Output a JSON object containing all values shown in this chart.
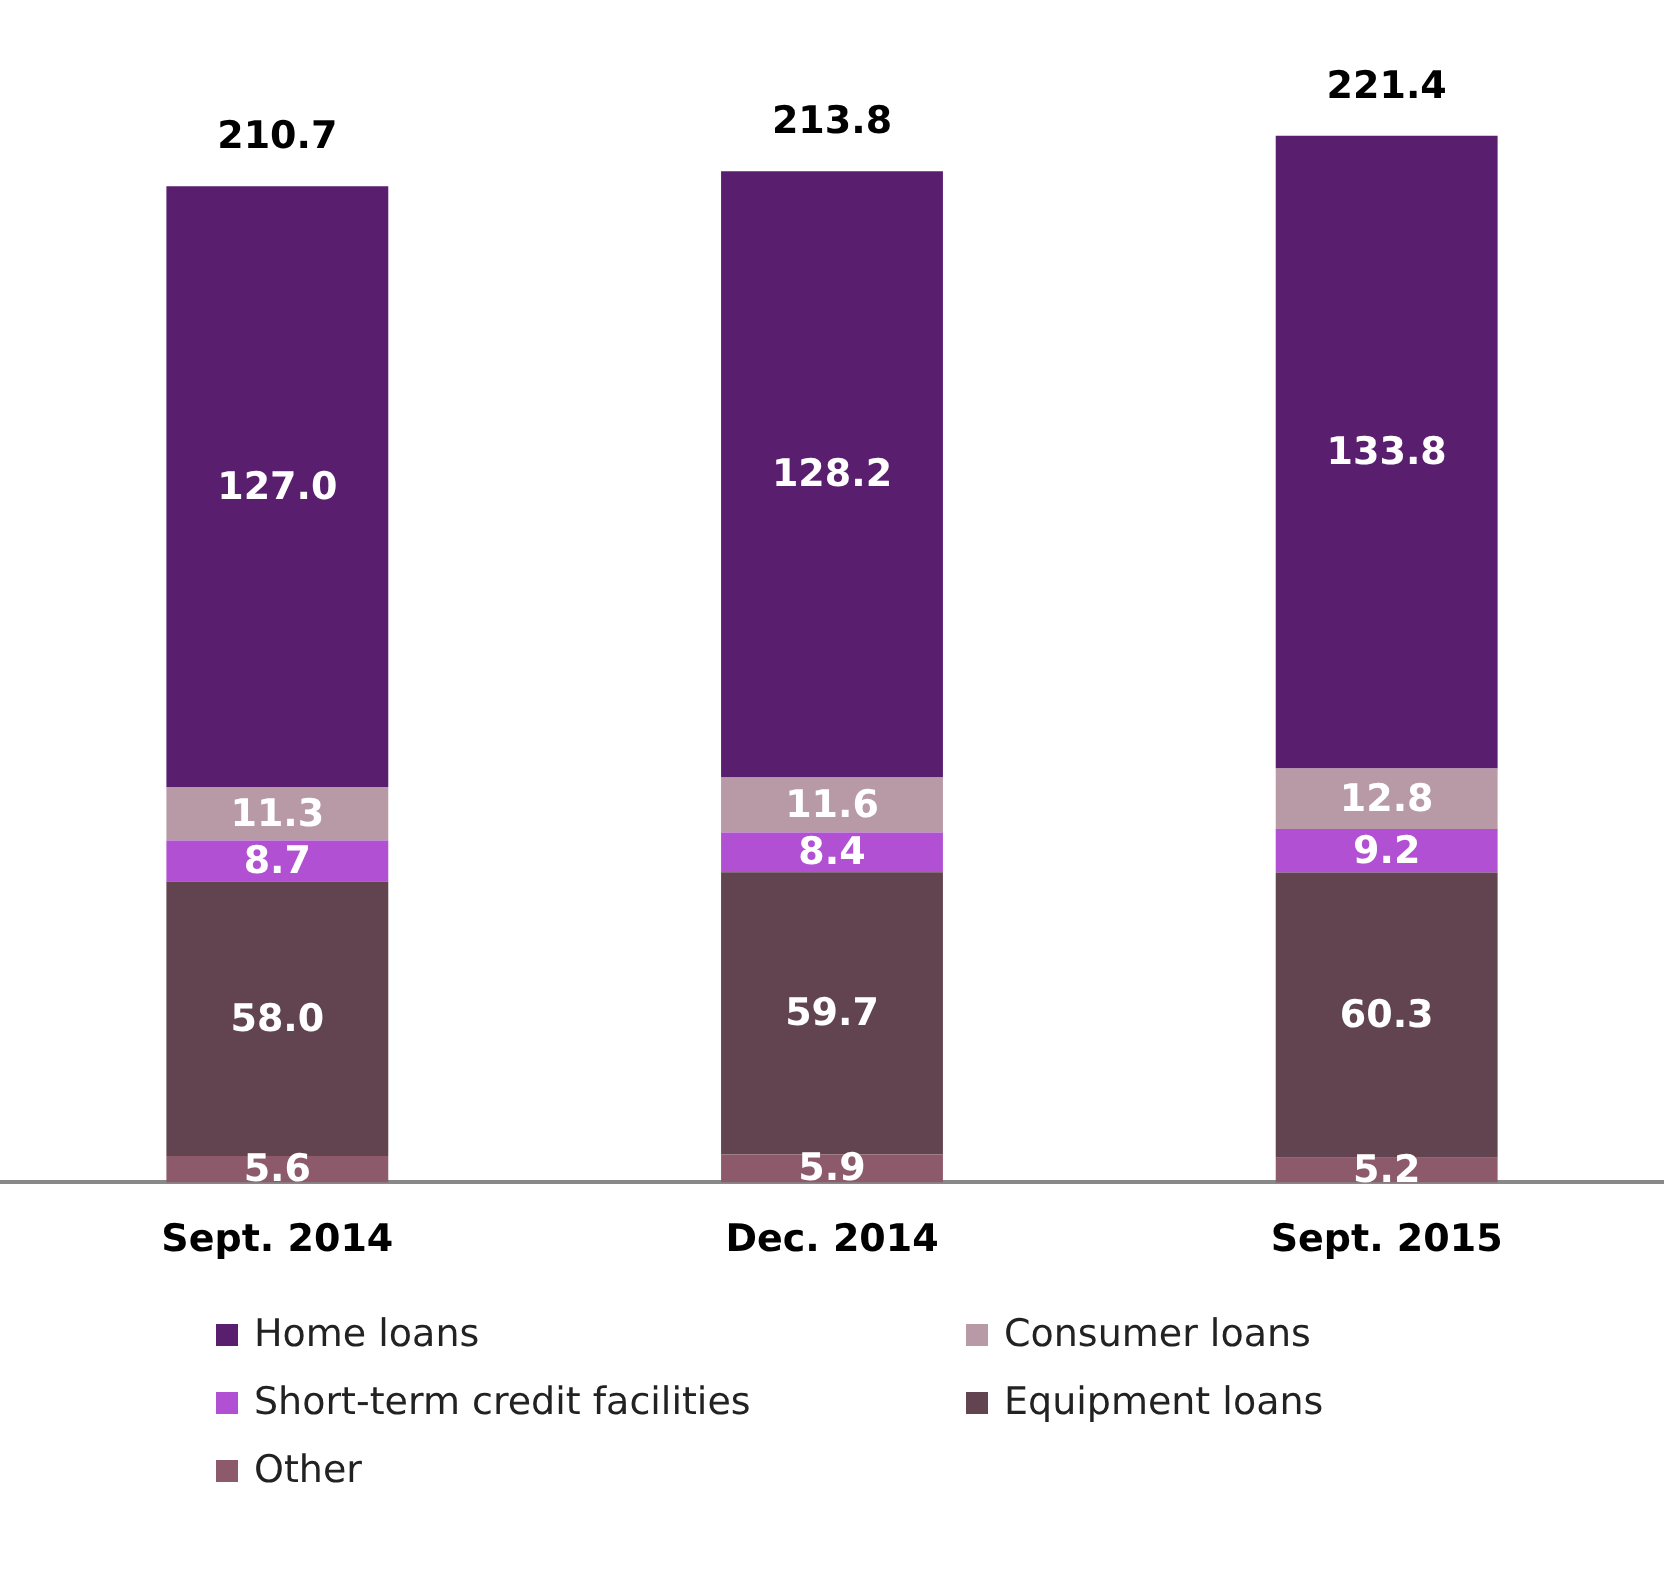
{
  "chart_data": {
    "type": "bar",
    "stacked": true,
    "categories": [
      "Sept. 2014",
      "Dec. 2014",
      "Sept. 2015"
    ],
    "series": [
      {
        "name": "Other",
        "color": "#8c5a6a",
        "values": [
          5.6,
          5.9,
          5.2
        ],
        "value_labels": [
          "5.6",
          "5.9",
          "5.2"
        ]
      },
      {
        "name": "Equipment loans",
        "color": "#61444f",
        "values": [
          58.0,
          59.7,
          60.3
        ],
        "value_labels": [
          "58.0",
          "59.7",
          "60.3"
        ]
      },
      {
        "name": "Short-term credit facilities",
        "color": "#b150d2",
        "values": [
          8.7,
          8.4,
          9.2
        ],
        "value_labels": [
          "8.7",
          "8.4",
          "9.2"
        ]
      },
      {
        "name": "Consumer loans",
        "color": "#b899a6",
        "values": [
          11.3,
          11.6,
          12.8
        ],
        "value_labels": [
          "11.3",
          "11.6",
          "12.8"
        ]
      },
      {
        "name": "Home loans",
        "color": "#5a1e6e",
        "values": [
          127.0,
          128.2,
          133.8
        ],
        "value_labels": [
          "127.0",
          "128.2",
          "133.8"
        ]
      }
    ],
    "totals": [
      "210.7",
      "213.8",
      "221.4"
    ],
    "legend": "bottom",
    "grid": false,
    "tick_labels": "x"
  }
}
